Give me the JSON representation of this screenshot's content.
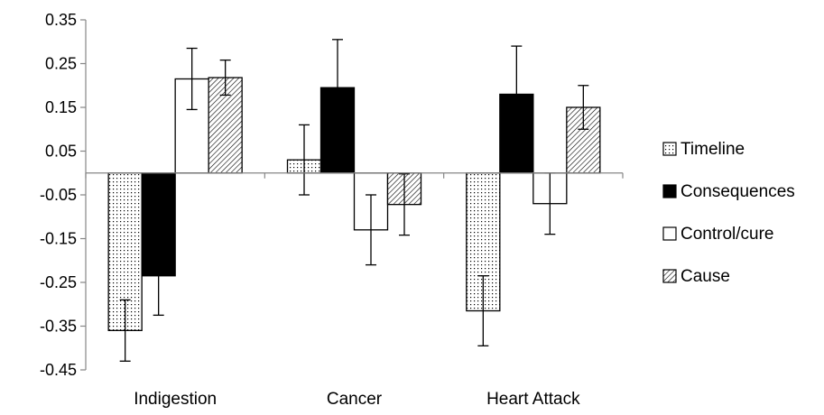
{
  "chart_data": {
    "type": "bar",
    "categories": [
      "Indigestion",
      "Cancer",
      "Heart Attack"
    ],
    "series": [
      {
        "name": "Timeline",
        "pattern": "dotted",
        "values": [
          -0.36,
          0.03,
          -0.315
        ],
        "errors": [
          0.07,
          0.08,
          0.08
        ]
      },
      {
        "name": "Consequences",
        "pattern": "solid",
        "values": [
          -0.235,
          0.195,
          0.18
        ],
        "errors": [
          0.09,
          0.11,
          0.11
        ]
      },
      {
        "name": "Control/cure",
        "pattern": "white",
        "values": [
          0.215,
          -0.13,
          -0.07
        ],
        "errors": [
          0.07,
          0.08,
          0.07
        ]
      },
      {
        "name": "Cause",
        "pattern": "hatched",
        "values": [
          0.218,
          -0.072,
          0.15
        ],
        "errors": [
          0.04,
          0.07,
          0.05
        ]
      }
    ],
    "title": "",
    "xlabel": "",
    "ylabel": "",
    "ylim": [
      -0.45,
      0.35
    ],
    "yticks": [
      "0.35",
      "0.25",
      "0.15",
      "0.05",
      "-0.05",
      "-0.15",
      "-0.25",
      "-0.35",
      "-0.45"
    ],
    "grid": false,
    "legend_position": "right",
    "colors": {
      "bar_fill_dark": "#000000",
      "bar_fill_light": "#ffffff",
      "axis": "#868686",
      "stroke": "#000000"
    }
  }
}
